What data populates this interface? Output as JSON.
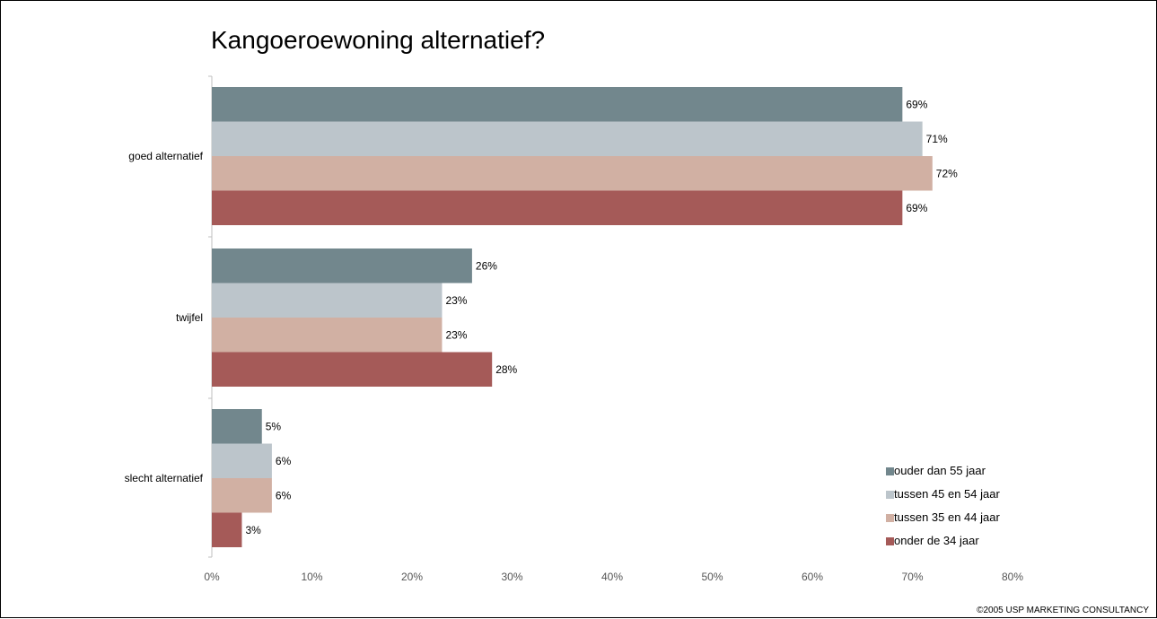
{
  "chart_data": {
    "type": "bar",
    "orientation": "horizontal",
    "title": "Kangoeroewoning alternatief?",
    "categories": [
      "goed alternatief",
      "twijfel",
      "slecht alternatief"
    ],
    "series": [
      {
        "name": "ouder dan 55 jaar",
        "color": "#72878d",
        "values": [
          69,
          26,
          5
        ],
        "labels": [
          "69%",
          "26%",
          "5%"
        ]
      },
      {
        "name": "tussen 45 en 54 jaar",
        "color": "#bcc5cb",
        "values": [
          71,
          23,
          6
        ],
        "labels": [
          "71%",
          "23%",
          "6%"
        ]
      },
      {
        "name": "tussen 35 en 44 jaar",
        "color": "#d1b0a3",
        "values": [
          72,
          23,
          6
        ],
        "labels": [
          "72%",
          "23%",
          "6%"
        ]
      },
      {
        "name": "onder de 34 jaar",
        "color": "#a55a58",
        "values": [
          69,
          28,
          3
        ],
        "labels": [
          "69%",
          "28%",
          "3%"
        ]
      }
    ],
    "xlim": [
      0,
      80
    ],
    "xticks": [
      0,
      10,
      20,
      30,
      40,
      50,
      60,
      70,
      80
    ],
    "xtick_labels": [
      "0%",
      "10%",
      "20%",
      "30%",
      "40%",
      "50%",
      "60%",
      "70%",
      "80%"
    ],
    "grid": false,
    "legend_position": "bottom-right"
  },
  "footer": "©2005 USP MARKETING CONSULTANCY"
}
